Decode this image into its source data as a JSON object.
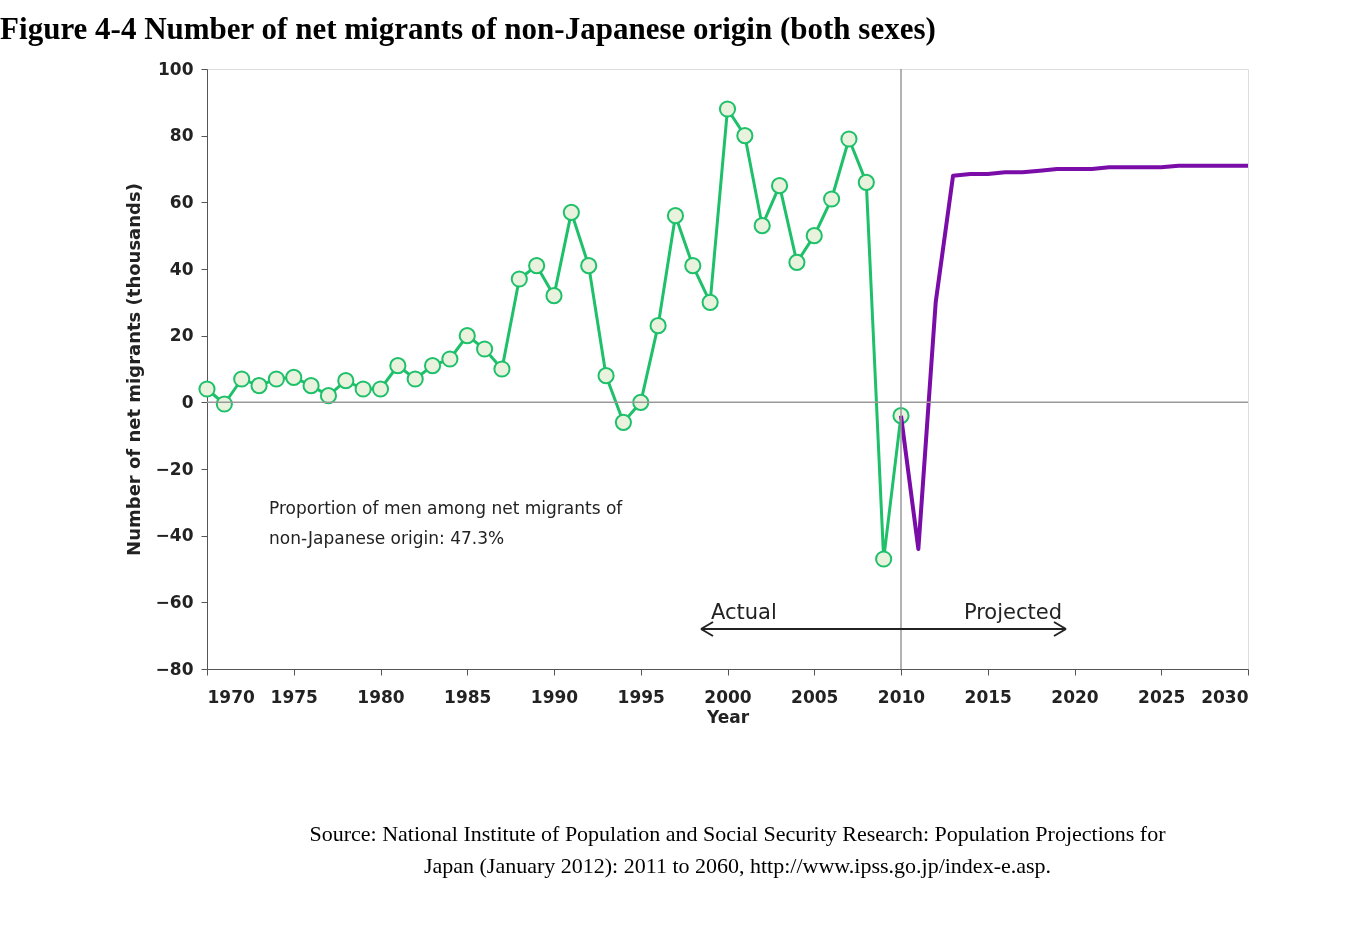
{
  "chart_data": {
    "type": "line",
    "title": "Figure 4-4 Number of net migrants of non-Japanese origin (both sexes)",
    "xlabel": "Year",
    "ylabel": "Number of net migrants (thousands)",
    "xlim": [
      1970,
      2030
    ],
    "xticks": [
      1970,
      1975,
      1980,
      1985,
      1990,
      1995,
      2000,
      2005,
      2010,
      2015,
      2020,
      2025,
      2030
    ],
    "ylim": [
      -80,
      100
    ],
    "yticks": [
      -80,
      -60,
      -40,
      -20,
      0,
      20,
      40,
      60,
      80,
      100
    ],
    "grid": false,
    "legend": false,
    "line_style": "solid",
    "series": [
      {
        "color": "#1ec06a",
        "marker": "circle",
        "x": [
          1970,
          1971,
          1972,
          1973,
          1974,
          1975,
          1976,
          1977,
          1978,
          1979,
          1980,
          1981,
          1982,
          1983,
          1984,
          1985,
          1986,
          1987,
          1988,
          1989,
          1990,
          1991,
          1992,
          1993,
          1994,
          1995,
          1996,
          1997,
          1998,
          1999,
          2000,
          2001,
          2002,
          2003,
          2004,
          2005,
          2006,
          2007,
          2008,
          2009,
          2010
        ],
        "values": [
          4,
          -0.5,
          7,
          5,
          7,
          7.5,
          5,
          2,
          6.5,
          4,
          4,
          11,
          7,
          11,
          13,
          20,
          16,
          10,
          37,
          41,
          32,
          57,
          41,
          8,
          -6,
          0,
          23,
          56,
          41,
          30,
          88,
          80,
          53,
          65,
          42,
          50,
          61,
          79,
          66,
          -47,
          -4
        ]
      },
      {
        "color": "#7a0ca8",
        "marker": "none",
        "x": [
          2010,
          2011,
          2012,
          2013,
          2014,
          2015,
          2016,
          2017,
          2018,
          2019,
          2020,
          2021,
          2022,
          2023,
          2024,
          2025,
          2026,
          2027,
          2028,
          2029,
          2030
        ],
        "values": [
          -4,
          -44,
          30,
          68,
          68.5,
          68.5,
          69,
          69,
          69.5,
          70,
          70,
          70,
          70.5,
          70.5,
          70.5,
          70.5,
          71,
          71,
          71,
          71,
          71
        ]
      }
    ],
    "ref_lines": [
      {
        "axis": "x",
        "value": 2010,
        "color": "#999999"
      },
      {
        "axis": "y",
        "value": 0,
        "color": "#999999"
      }
    ],
    "annotations": [
      "Proportion of men among net migrants of non-Japanese origin: 47.3%",
      "Actual",
      "Projected",
      "Source: National Institute of Population and Social Security Research: Population Projections for Japan (January 2012): 2011 to 2060, http://www.ipss.go.jp/index-e.asp."
    ]
  }
}
